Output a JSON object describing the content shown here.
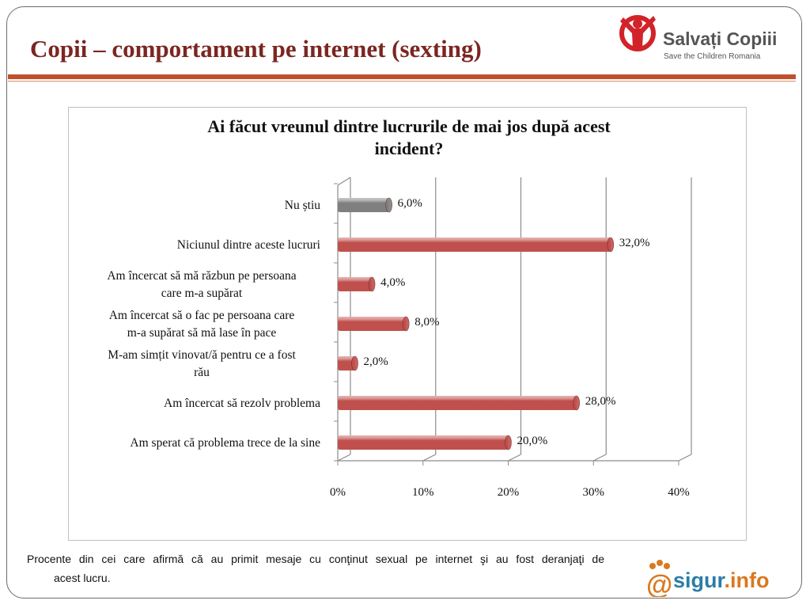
{
  "slide": {
    "title": "Copii – comportament pe internet (sexting)",
    "accent_color": "#c0502c",
    "title_color": "#7b2621"
  },
  "logos": {
    "save_the_children": {
      "name": "Salvați Copiii",
      "subtitle": "Save the Children Romania",
      "icon": "save-the-children-emblem-icon",
      "color": "#d2232a"
    },
    "sigur_info": {
      "text": "@sigur.info",
      "icon": "paw-icon",
      "color": "#2a7da8",
      "accent": "#d9791f"
    }
  },
  "footnote": "Procente din cei care afirmă că au primit mesaje cu conţinut sexual pe internet şi au fost deranjaţi de acest lucru.",
  "chart_data": {
    "type": "bar",
    "orientation": "horizontal",
    "title": "Ai făcut vreunul dintre lucrurile de mai jos după acest incident?",
    "categories": [
      "Nu știu",
      "Niciunul dintre aceste lucruri",
      "Am încercat să mă răzbun pe persoana care m-a supărat",
      "Am încercat să o fac pe persoana care m-a supărat să mă lase în pace",
      "M-am simțit vinovat/ă pentru ce a fost rău",
      "Am încercat să rezolv problema",
      "Am sperat că problema trece de la sine"
    ],
    "category_lines": [
      [
        "Nu știu"
      ],
      [
        "Niciunul dintre aceste lucruri"
      ],
      [
        "Am încercat să mă răzbun pe persoana",
        "care m-a supărat"
      ],
      [
        "Am încercat să o fac pe persoana care",
        "m-a supărat să mă lase în pace"
      ],
      [
        "M-am simțit vinovat/ă pentru ce a fost",
        "rău"
      ],
      [
        "Am încercat să rezolv problema"
      ],
      [
        "Am sperat că problema trece de la sine"
      ]
    ],
    "values": [
      6.0,
      32.0,
      4.0,
      8.0,
      2.0,
      28.0,
      20.0
    ],
    "data_labels": [
      "6,0%",
      "32,0%",
      "4,0%",
      "8,0%",
      "2,0%",
      "28,0%",
      "20,0%"
    ],
    "bar_colors": [
      "#7f7f7f",
      "#c0504d",
      "#c0504d",
      "#c0504d",
      "#c0504d",
      "#c0504d",
      "#c0504d"
    ],
    "xlim": [
      0,
      40
    ],
    "xticks": [
      0,
      10,
      20,
      30,
      40
    ],
    "xtick_labels": [
      "0%",
      "10%",
      "20%",
      "30%",
      "40%"
    ],
    "grid": true,
    "legend": "none",
    "xlabel": "",
    "ylabel": ""
  }
}
